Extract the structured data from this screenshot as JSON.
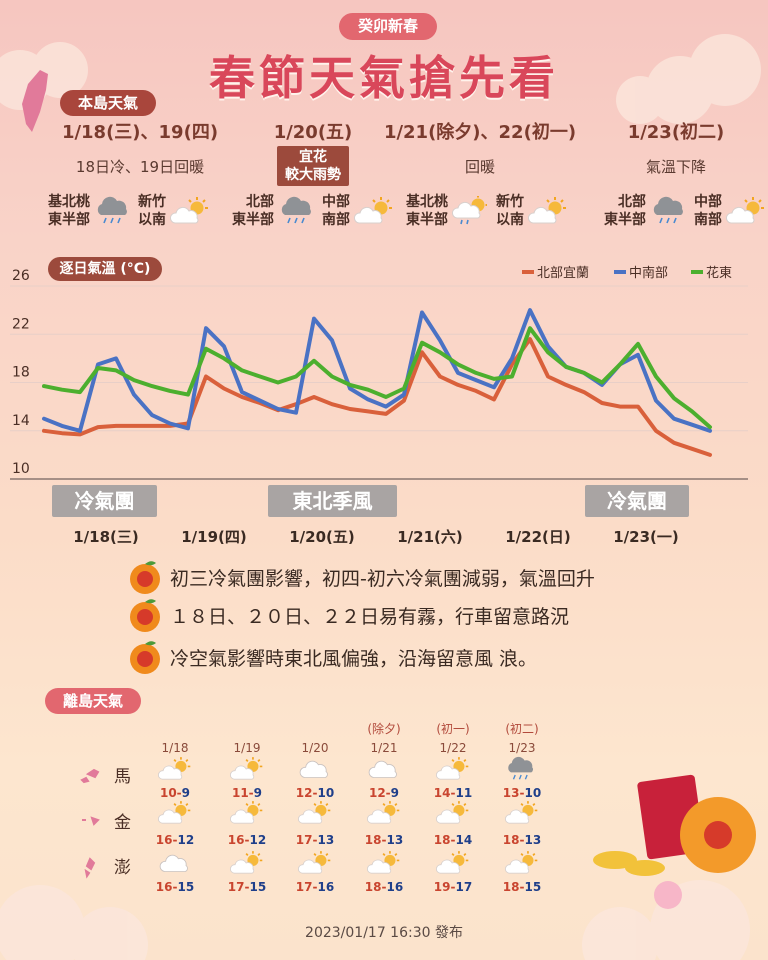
{
  "header": {
    "badge": "癸卯新春",
    "title": "春節天氣搶先看"
  },
  "main": {
    "label": "本島天氣",
    "days": [
      {
        "date": "1/18(三)、19(四)",
        "desc": "18日冷、19日回暖",
        "regions": [
          "基北桃\n東半部",
          "新竹\n以南"
        ]
      },
      {
        "date": "1/20(五)",
        "highlight": "宜花\n較大雨勢",
        "regions": [
          "北部\n東半部",
          "中部\n南部"
        ]
      },
      {
        "date": "1/21(除夕)、22(初一)",
        "desc": "回暖",
        "regions": [
          "基北桃\n東半部",
          "新竹\n以南"
        ]
      },
      {
        "date": "1/23(初二)",
        "desc": "氣溫下降",
        "regions": [
          "北部\n東半部",
          "中部\n南部"
        ]
      }
    ]
  },
  "chart_data": {
    "type": "line",
    "title": "逐日氣溫 (°C)",
    "categories": [
      null,
      null,
      null,
      "1/18(三)",
      null,
      null,
      null,
      null,
      null,
      "1/19(四)",
      null,
      null,
      null,
      null,
      null,
      "1/20(五)",
      null,
      null,
      null,
      null,
      null,
      "1/21(六)",
      null,
      null,
      null,
      null,
      null,
      "1/22(日)",
      null,
      null,
      null,
      null,
      null,
      "1/23(一)",
      null,
      null,
      null,
      null
    ],
    "series": [
      {
        "name": "北部宜蘭",
        "color": "#d9603b",
        "values": [
          14.0,
          13.8,
          13.7,
          14.3,
          14.4,
          14.4,
          14.4,
          14.4,
          14.6,
          18.5,
          17.5,
          16.8,
          16.3,
          15.7,
          16.2,
          16.8,
          16.2,
          15.8,
          15.6,
          15.4,
          16.5,
          20.5,
          18.5,
          17.8,
          17.3,
          16.6,
          19.5,
          21.6,
          18.5,
          17.8,
          17.2,
          16.3,
          16.0,
          16.0,
          14.0,
          13.0,
          12.5,
          12.0
        ]
      },
      {
        "name": "中南部",
        "color": "#4a72c4",
        "values": [
          15.0,
          14.4,
          14.0,
          19.5,
          20.0,
          17.0,
          15.3,
          14.6,
          14.2,
          22.5,
          21.0,
          17.2,
          16.5,
          15.8,
          15.5,
          23.3,
          21.5,
          17.5,
          16.6,
          16.0,
          17.0,
          23.8,
          21.5,
          18.8,
          18.2,
          17.6,
          20.0,
          24.0,
          21.0,
          19.3,
          18.8,
          17.8,
          19.5,
          20.3,
          16.5,
          15.0,
          14.5,
          14.0
        ]
      },
      {
        "name": "花東",
        "color": "#4caf2e",
        "values": [
          17.7,
          17.4,
          17.2,
          19.2,
          19.0,
          18.2,
          17.7,
          17.3,
          17.0,
          20.8,
          20.0,
          19.0,
          18.5,
          18.0,
          18.5,
          19.8,
          18.5,
          17.8,
          17.4,
          16.8,
          17.5,
          21.3,
          20.5,
          19.5,
          18.8,
          18.3,
          18.5,
          22.5,
          20.5,
          19.3,
          18.8,
          18.0,
          19.5,
          21.2,
          18.5,
          16.7,
          15.6,
          14.3
        ]
      }
    ],
    "ylim": [
      10,
      26
    ],
    "yticks": [
      10,
      14,
      18,
      22,
      26
    ],
    "grid": true,
    "legend": "top-right",
    "annotations": [
      "冷氣團",
      "東北季風",
      "冷氣團"
    ]
  },
  "notes": [
    "初三冷氣團影響，初四-初六冷氣團減弱，氣溫回升",
    "１８日、２０日、２２日易有霧，行車留意路況",
    "冷空氣影響時東北風偏強，沿海留意風 浪。"
  ],
  "islands": {
    "label": "離島天氣",
    "lunar": [
      null,
      null,
      null,
      "(除夕)",
      "(初一)",
      "(初二)"
    ],
    "dates": [
      "1/18",
      "1/19",
      "1/20",
      "1/21",
      "1/22",
      "1/23"
    ],
    "rows": [
      {
        "name": "馬",
        "high": [
          10,
          11,
          12,
          12,
          14,
          13
        ],
        "low": [
          9,
          9,
          10,
          9,
          11,
          10
        ]
      },
      {
        "name": "金",
        "high": [
          16,
          16,
          17,
          18,
          18,
          18
        ],
        "low": [
          12,
          12,
          13,
          13,
          14,
          13
        ]
      },
      {
        "name": "澎",
        "high": [
          16,
          17,
          17,
          18,
          19,
          18
        ],
        "low": [
          15,
          15,
          16,
          16,
          17,
          15
        ]
      }
    ]
  },
  "footer": "2023/01/17 16:30 發布"
}
